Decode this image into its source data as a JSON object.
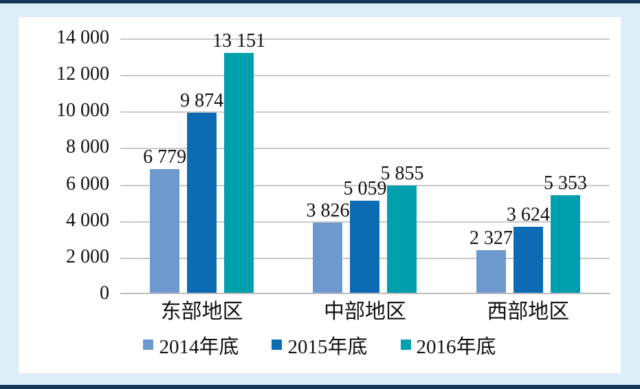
{
  "frame": {
    "background_color": "#ddeef9",
    "border_color": "#14395b",
    "panel_color": "#ffffff",
    "gridline_color": "#c9c9c9"
  },
  "chart_data": {
    "type": "bar",
    "title": "",
    "xlabel": "",
    "ylabel": "",
    "categories": [
      "东部地区",
      "中部地区",
      "西部地区"
    ],
    "series": [
      {
        "name": "2014年底",
        "color": "#6e99ce",
        "values": [
          6779,
          3826,
          2327
        ]
      },
      {
        "name": "2015年底",
        "color": "#0d6bb4",
        "values": [
          9874,
          5059,
          3624
        ]
      },
      {
        "name": "2016年底",
        "color": "#009fad",
        "values": [
          13151,
          5855,
          5353
        ]
      }
    ],
    "data_labels": [
      "6 779",
      "9 874",
      "13 151",
      "3 826",
      "5 059",
      "5 855",
      "2 327",
      "3 624",
      "5 353"
    ],
    "ylim": [
      0,
      14000
    ],
    "ytick_step": 2000,
    "ytick_labels": [
      "0",
      "2 000",
      "4 000",
      "6 000",
      "8 000",
      "10 000",
      "12 000",
      "14 000"
    ],
    "grid": "horizontal",
    "legend_position": "bottom",
    "number_format": "space-thousands"
  }
}
